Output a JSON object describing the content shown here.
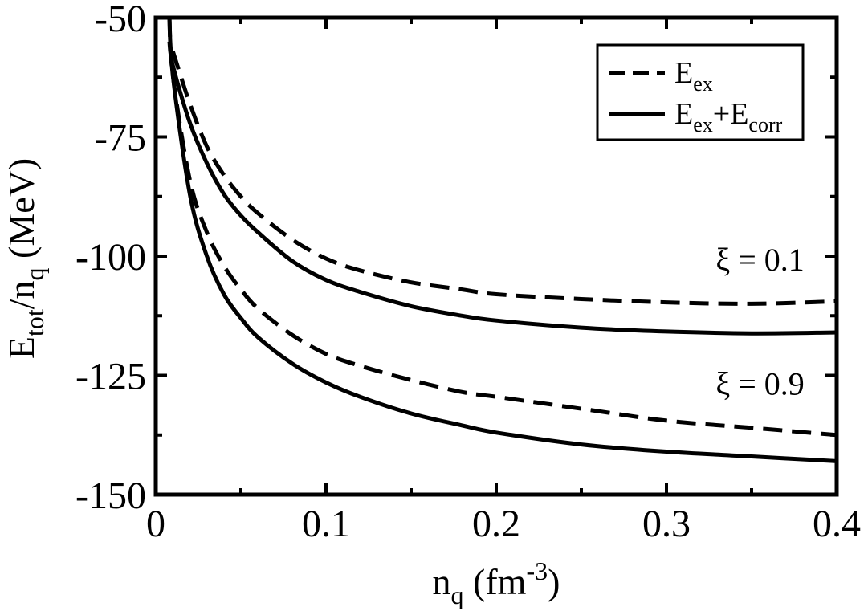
{
  "chart_data": {
    "type": "line",
    "xlabel": {
      "base": "n",
      "sub": "q",
      "unit_open": " (fm",
      "sup": "-3",
      "unit_close": ")"
    },
    "ylabel": {
      "base": "E",
      "sub1": "tot",
      "mid": "/n",
      "sub2": "q",
      "unit": " (MeV)"
    },
    "xlim": [
      0,
      0.4
    ],
    "ylim": [
      -150,
      -50
    ],
    "xticks": [
      0,
      0.1,
      0.2,
      0.3,
      0.4
    ],
    "xtick_labels": [
      "0",
      "0.1",
      "0.2",
      "0.3",
      "0.4"
    ],
    "yticks": [
      -150,
      -125,
      -100,
      -75,
      -50
    ],
    "ytick_labels": [
      "-150",
      "-125",
      "-100",
      "-75",
      "-50"
    ],
    "grid": false,
    "legend_position": "top-right",
    "legend": [
      {
        "style": "dashed",
        "base": "E",
        "sub": "ex"
      },
      {
        "style": "solid",
        "base1": "E",
        "sub1": "ex",
        "plus": "+E",
        "sub2": "corr"
      }
    ],
    "annotations": [
      {
        "text": "ξ = 0.1",
        "x": 0.355,
        "y": -103
      },
      {
        "text": "ξ = 0.9",
        "x": 0.355,
        "y": -129
      }
    ],
    "series": [
      {
        "style": "dashed",
        "group": "ξ = 0.1",
        "x": [
          0.01,
          0.02,
          0.03,
          0.04,
          0.05,
          0.06,
          0.08,
          0.1,
          0.12,
          0.15,
          0.18,
          0.2,
          0.25,
          0.3,
          0.35,
          0.4
        ],
        "y": [
          -57,
          -68,
          -77,
          -83,
          -87.5,
          -91,
          -96.5,
          -100.5,
          -103,
          -105.5,
          -107,
          -108,
          -109,
          -109.7,
          -110,
          -109.5
        ]
      },
      {
        "style": "solid",
        "group": "ξ = 0.1",
        "x": [
          0.008,
          0.01,
          0.02,
          0.03,
          0.04,
          0.05,
          0.06,
          0.08,
          0.1,
          0.12,
          0.15,
          0.18,
          0.2,
          0.25,
          0.3,
          0.35,
          0.4
        ],
        "y": [
          -55,
          -60,
          -72,
          -80.5,
          -87,
          -91.5,
          -95,
          -101,
          -105,
          -107.5,
          -110.5,
          -112.5,
          -113.5,
          -115,
          -115.8,
          -116.2,
          -116
        ]
      },
      {
        "style": "dashed",
        "group": "ξ = 0.9",
        "x": [
          0.008,
          0.01,
          0.02,
          0.03,
          0.04,
          0.05,
          0.06,
          0.08,
          0.1,
          0.12,
          0.15,
          0.18,
          0.2,
          0.25,
          0.3,
          0.35,
          0.4
        ],
        "y": [
          -50,
          -62,
          -84,
          -95,
          -102,
          -107,
          -111,
          -116.5,
          -120.5,
          -123,
          -126,
          -128.5,
          -129.5,
          -132,
          -134.5,
          -136,
          -137.5
        ]
      },
      {
        "style": "solid",
        "group": "ξ = 0.9",
        "x": [
          0.008,
          0.01,
          0.02,
          0.03,
          0.04,
          0.05,
          0.06,
          0.08,
          0.1,
          0.12,
          0.15,
          0.18,
          0.2,
          0.25,
          0.3,
          0.35,
          0.4
        ],
        "y": [
          -50,
          -62,
          -87,
          -100,
          -108,
          -113,
          -117,
          -122.5,
          -126.5,
          -129.5,
          -133,
          -135.5,
          -137,
          -139.5,
          -141,
          -142,
          -143
        ]
      }
    ]
  }
}
